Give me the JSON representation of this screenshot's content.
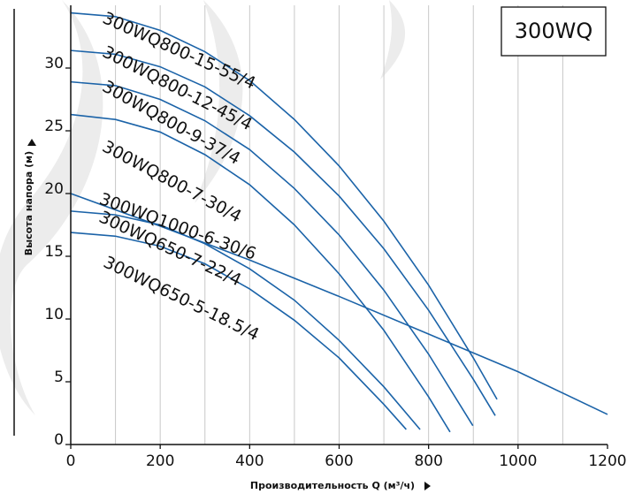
{
  "chart_data": {
    "type": "line",
    "title": "300WQ",
    "x_label": "Производительность Q (м³/ч)",
    "y_label": "Высота напора (м)",
    "xlim": [
      0,
      1200
    ],
    "xticks": [
      0,
      200,
      400,
      600,
      800,
      1000,
      1200
    ],
    "x_gridlines": [
      100,
      200,
      300,
      400,
      500,
      600,
      700,
      800,
      900,
      1000,
      1100
    ],
    "ylim": [
      0,
      35
    ],
    "yticks": [
      0,
      5,
      10,
      15,
      20,
      25,
      30
    ],
    "series": [
      {
        "name": "300WQ800-15-55/4",
        "color": "#1b63a8",
        "x": [
          0,
          100,
          200,
          300,
          400,
          500,
          600,
          700,
          800,
          900,
          953
        ],
        "values": [
          34.4,
          34.1,
          33.0,
          31.3,
          29.0,
          25.9,
          22.2,
          17.8,
          12.7,
          6.9,
          3.6
        ]
      },
      {
        "name": "300WQ800-12-45/4",
        "color": "#1b63a8",
        "x": [
          0,
          100,
          200,
          300,
          400,
          500,
          600,
          700,
          800,
          900,
          949
        ],
        "values": [
          31.4,
          31.1,
          30.1,
          28.5,
          26.2,
          23.3,
          19.8,
          15.6,
          10.7,
          5.2,
          2.3
        ]
      },
      {
        "name": "300WQ800-9-37/4",
        "color": "#1b63a8",
        "x": [
          0,
          100,
          200,
          300,
          400,
          500,
          600,
          700,
          800,
          899
        ],
        "values": [
          28.9,
          28.6,
          27.5,
          25.8,
          23.5,
          20.4,
          16.7,
          12.3,
          7.2,
          1.5
        ]
      },
      {
        "name": "300WQ800-7-30/4",
        "color": "#1b63a8",
        "x": [
          0,
          100,
          200,
          300,
          400,
          500,
          600,
          700,
          800,
          848
        ],
        "values": [
          26.3,
          25.9,
          24.9,
          23.1,
          20.7,
          17.5,
          13.6,
          9.1,
          3.8,
          1.0
        ]
      },
      {
        "name": "300WQ1000-6-30/6",
        "color": "#1b63a8",
        "x": [
          0,
          200,
          400,
          600,
          800,
          1000,
          1200
        ],
        "values": [
          20.0,
          17.4,
          14.7,
          11.8,
          8.8,
          5.8,
          2.4
        ]
      },
      {
        "name": "300WQ650-7-22/4",
        "color": "#1b63a8",
        "x": [
          0,
          100,
          200,
          300,
          400,
          500,
          600,
          700,
          781
        ],
        "values": [
          18.6,
          18.3,
          17.5,
          16.0,
          14.0,
          11.5,
          8.3,
          4.6,
          1.2
        ]
      },
      {
        "name": "300WQ650-5-18.5/4",
        "color": "#1b63a8",
        "x": [
          0,
          100,
          200,
          300,
          400,
          500,
          600,
          700,
          750
        ],
        "values": [
          16.9,
          16.6,
          15.8,
          14.4,
          12.4,
          9.9,
          6.9,
          3.2,
          1.2
        ]
      }
    ]
  }
}
